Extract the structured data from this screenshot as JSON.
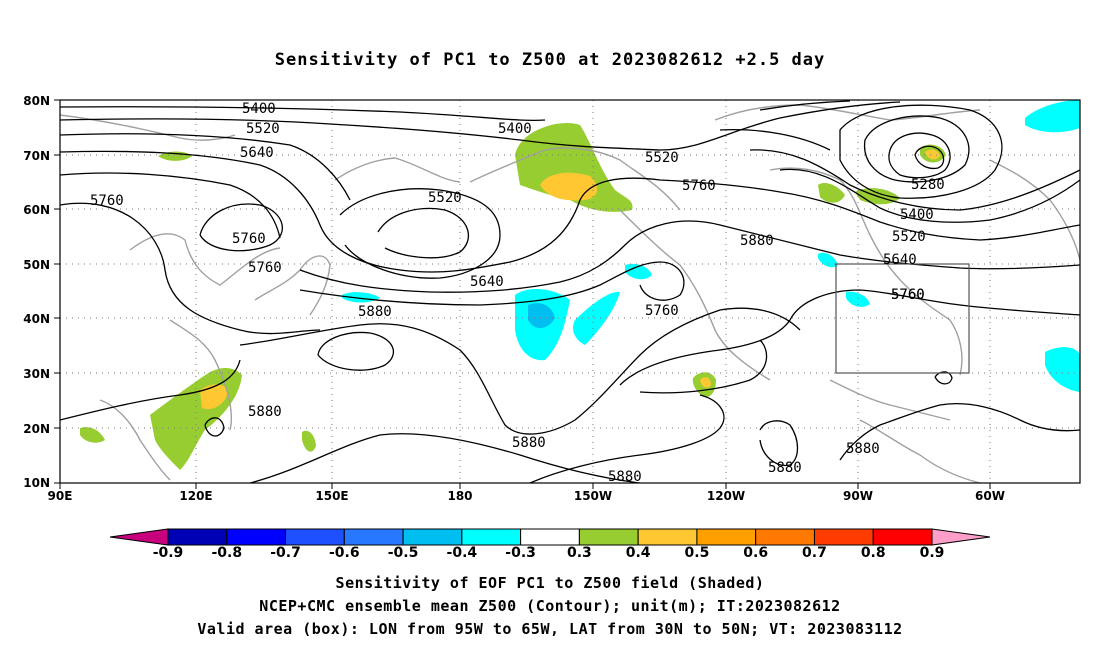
{
  "title": "Sensitivity of PC1 to Z500 at 2023082612 +2.5 day",
  "axes": {
    "lat_ticks": [
      "80N",
      "70N",
      "60N",
      "50N",
      "40N",
      "30N",
      "20N",
      "10N"
    ],
    "lon_ticks": [
      "90E",
      "120E",
      "150E",
      "180",
      "150W",
      "120W",
      "90W",
      "60W"
    ]
  },
  "contour_labels": [
    {
      "text": "5400"
    },
    {
      "text": "5520"
    },
    {
      "text": "5640"
    },
    {
      "text": "5760"
    },
    {
      "text": "5400"
    },
    {
      "text": "5520"
    },
    {
      "text": "5520"
    },
    {
      "text": "5760"
    },
    {
      "text": "5760"
    },
    {
      "text": "5760"
    },
    {
      "text": "5640"
    },
    {
      "text": "5880"
    },
    {
      "text": "5880"
    },
    {
      "text": "5760"
    },
    {
      "text": "5760"
    },
    {
      "text": "5880"
    },
    {
      "text": "5880"
    },
    {
      "text": "5880"
    },
    {
      "text": "5880"
    },
    {
      "text": "5880"
    },
    {
      "text": "5280"
    },
    {
      "text": "5400"
    },
    {
      "text": "5520"
    },
    {
      "text": "5640"
    },
    {
      "text": "5760"
    }
  ],
  "colorbar": {
    "ticks": [
      "-0.9",
      "-0.8",
      "-0.7",
      "-0.6",
      "-0.5",
      "-0.4",
      "-0.3",
      "0.3",
      "0.4",
      "0.5",
      "0.6",
      "0.7",
      "0.8",
      "0.9"
    ],
    "colors": [
      "#c8007e",
      "#0000b4",
      "#0000ff",
      "#1e50ff",
      "#2878ff",
      "#00bef0",
      "#00ffff",
      "#ffffff",
      "#98cd32",
      "#ffc832",
      "#ffa000",
      "#ff7800",
      "#ff3c00",
      "#ff0000",
      "#ff9ec8"
    ]
  },
  "captions": [
    "Sensitivity of EOF PC1 to Z500 field (Shaded)",
    "NCEP+CMC ensemble mean Z500 (Contour); unit(m); IT:2023082612",
    "Valid area (box): LON from 95W to 65W, LAT from 30N to 50N; VT: 2023083112"
  ],
  "colors": {
    "contour": "#000000",
    "coast": "#a0a0a0",
    "positive_low": "#98cd32",
    "positive_mid": "#ffc832",
    "positive_high": "#ffa000",
    "negative_low": "#00ffff",
    "negative_mid": "#00bef0"
  }
}
